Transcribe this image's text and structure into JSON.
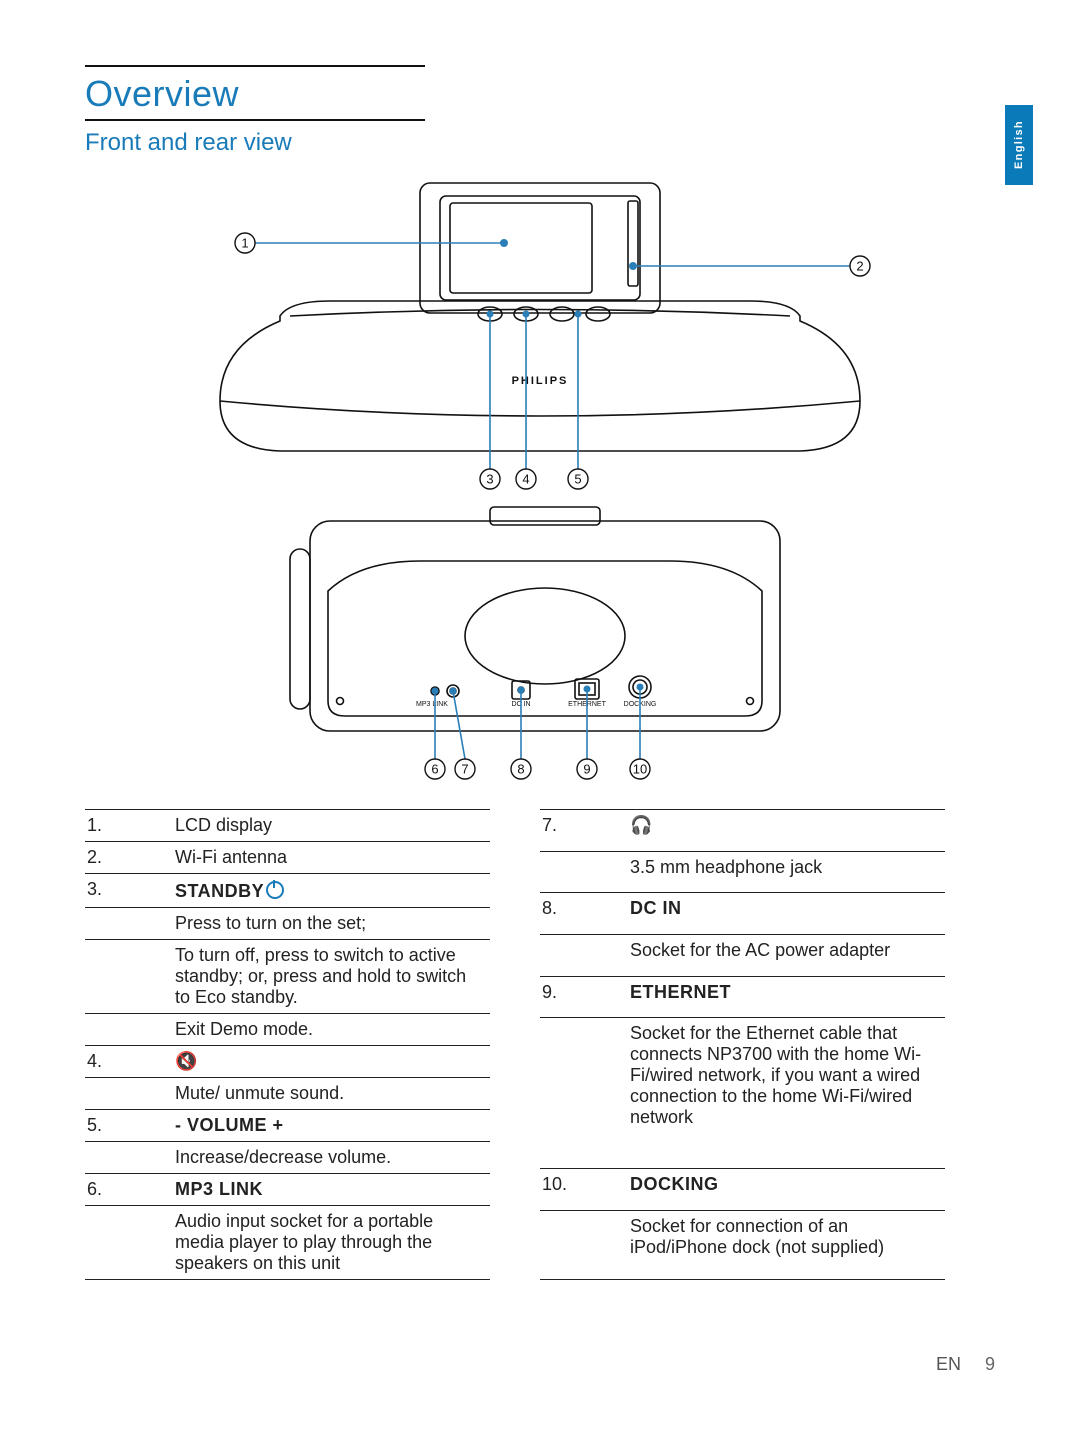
{
  "language_tab": "English",
  "section_title": "Overview",
  "subsection_title": "Front and rear view",
  "footer_lang": "EN",
  "footer_page": "9",
  "brand_text": "PHILIPS",
  "diagram": {
    "callout_color": "#2a7fb8",
    "line_color": "#111111",
    "fill_color": "#ffffff",
    "labels": [
      "1",
      "2",
      "3",
      "4",
      "5",
      "6",
      "7",
      "8",
      "9",
      "10"
    ]
  },
  "left_table": [
    {
      "num": "1.",
      "desc": "LCD display"
    },
    {
      "num": "2.",
      "desc": "Wi-Fi antenna"
    },
    {
      "num": "3.",
      "head": "STANDBY",
      "power_icon": true
    },
    {
      "num": "",
      "desc": "Press to turn on the set;"
    },
    {
      "num": "",
      "desc": "To turn off, press to switch to active standby; or, press and hold to switch to Eco standby."
    },
    {
      "num": "",
      "desc": "Exit Demo mode."
    },
    {
      "num": "4.",
      "icon": "mute"
    },
    {
      "num": "",
      "desc": "Mute/ unmute sound."
    },
    {
      "num": "5.",
      "head": "- VOLUME +"
    },
    {
      "num": "",
      "desc": "Increase/decrease volume."
    },
    {
      "num": "6.",
      "head": "MP3 LINK"
    },
    {
      "num": "",
      "desc": "Audio input socket for a portable media player to play through the speakers on this unit"
    }
  ],
  "right_table": [
    {
      "num": "7.",
      "icon": "headphones"
    },
    {
      "num": "",
      "desc": "3.5 mm headphone jack"
    },
    {
      "num": "8.",
      "head": "DC IN"
    },
    {
      "num": "",
      "desc": "Socket for the AC power adapter"
    },
    {
      "num": "9.",
      "head": "ETHERNET"
    },
    {
      "num": "",
      "desc": "Socket for the Ethernet cable that connects NP3700 with the home Wi-Fi/wired network, if you want a wired connection to the home Wi-Fi/wired network"
    },
    {
      "num": "10.",
      "head": "DOCKING"
    },
    {
      "num": "",
      "desc": "Socket for connection of an iPod/iPhone dock (not supplied)"
    }
  ]
}
